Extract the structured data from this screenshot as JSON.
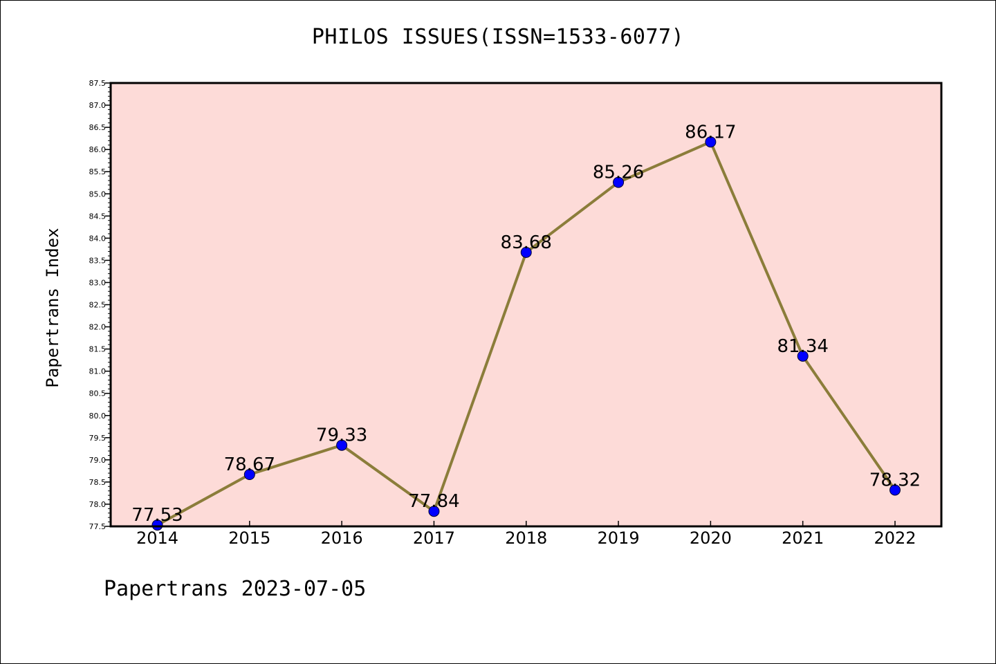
{
  "title": "PHILOS ISSUES(ISSN=1533-6077)",
  "footer": "Papertrans 2023-07-05",
  "colors": {
    "plot_background": "#fddbd8",
    "line": "#8b7d3a",
    "marker": "#0000ff",
    "axis": "#000000"
  },
  "chart_data": {
    "type": "line",
    "title": "PHILOS ISSUES(ISSN=1533-6077)",
    "xlabel": "",
    "ylabel": "Papertrans Index",
    "categories": [
      "2014",
      "2015",
      "2016",
      "2017",
      "2018",
      "2019",
      "2020",
      "2021",
      "2022"
    ],
    "series": [
      {
        "values": [
          77.53,
          78.67,
          79.33,
          77.84,
          83.68,
          85.26,
          86.17,
          81.34,
          78.32
        ],
        "labels": [
          "77.53",
          "78.67",
          "79.33",
          "77.84",
          "83.68",
          "85.26",
          "86.17",
          "81.34",
          "78.32"
        ]
      }
    ],
    "ylim": [
      77.5,
      87.5
    ],
    "yticks": [
      "77.5",
      "78.0",
      "78.5",
      "79.0",
      "79.5",
      "80.0",
      "80.5",
      "81.0",
      "81.5",
      "82.0",
      "82.5",
      "83.0",
      "83.5",
      "84.0",
      "84.5",
      "85.0",
      "85.5",
      "86.0",
      "86.5",
      "87.0",
      "87.5"
    ],
    "grid": false,
    "legend": "none"
  }
}
